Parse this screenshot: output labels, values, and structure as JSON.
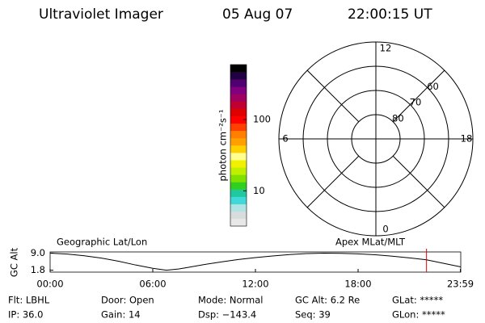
{
  "header": {
    "instrument": "Ultraviolet Imager",
    "date": "05 Aug 07",
    "time": "22:00:15 UT"
  },
  "colorbar": {
    "label": "photon cm⁻²s⁻¹",
    "log_scale": true,
    "ylim": [
      3.2,
      590
    ],
    "yticks": [
      100,
      10
    ],
    "colors": [
      "#e8e8e8",
      "#d8dcdc",
      "#b0e4e4",
      "#40d8d8",
      "#20c8a0",
      "#30d020",
      "#80e000",
      "#c0f000",
      "#f0f000",
      "#ffff90",
      "#ffd000",
      "#ffa000",
      "#ff8000",
      "#ff4000",
      "#ff0000",
      "#e00000",
      "#c00030",
      "#a00060",
      "#800080",
      "#500070",
      "#200040",
      "#000000"
    ]
  },
  "polar": {
    "rlim": [
      90,
      50
    ],
    "rings": [
      80,
      70,
      60,
      50
    ],
    "ring_labels": [
      80,
      70,
      60
    ],
    "hours": [
      {
        "value": 12,
        "label": "12"
      },
      {
        "value": 6,
        "label": "6"
      },
      {
        "value": 0,
        "label": "0"
      },
      {
        "value": 18,
        "label": "18"
      }
    ]
  },
  "chart_data": {
    "type": "line",
    "y_label": "GC Alt",
    "left_label": "Geographic Lat/Lon",
    "right_label": "Apex MLat/MLT",
    "x": [
      0,
      1,
      2,
      3,
      4,
      5,
      6,
      6.8,
      7.5,
      8,
      9,
      10,
      11,
      12,
      13,
      14,
      15,
      16,
      17,
      18,
      19,
      20,
      21,
      22,
      23,
      24
    ],
    "series": [
      {
        "color": "#000000",
        "values": [
          9.0,
          8.6,
          7.9,
          6.9,
          5.6,
          4.0,
          2.6,
          1.8,
          2.3,
          2.9,
          4.2,
          5.3,
          6.3,
          7.1,
          7.8,
          8.4,
          8.8,
          9.0,
          8.9,
          8.7,
          8.3,
          7.7,
          7.0,
          6.2,
          4.7,
          3.2
        ]
      }
    ],
    "marker_x": 22.0,
    "marker_color": "#e00000",
    "xlim": [
      0,
      24
    ],
    "ylim": [
      1.0,
      9.5
    ],
    "xticks": [
      {
        "value": 0,
        "label": "00:00"
      },
      {
        "value": 6,
        "label": "06:00"
      },
      {
        "value": 12,
        "label": "12:00"
      },
      {
        "value": 18,
        "label": "18:00"
      },
      {
        "value": 23.98,
        "label": "23:59"
      }
    ],
    "yticks": [
      {
        "value": 9.0,
        "label": "9.0"
      },
      1.8
    ]
  },
  "info": [
    [
      "Flt: LBHL",
      "Door: Open",
      "Mode: Normal",
      "GC Alt: 6.2 Re",
      "GLat: *****"
    ],
    [
      "IP: 36.0",
      "Gain: 14",
      "Dsp: −143.4",
      "Seq: 39",
      "GLon: *****"
    ]
  ]
}
